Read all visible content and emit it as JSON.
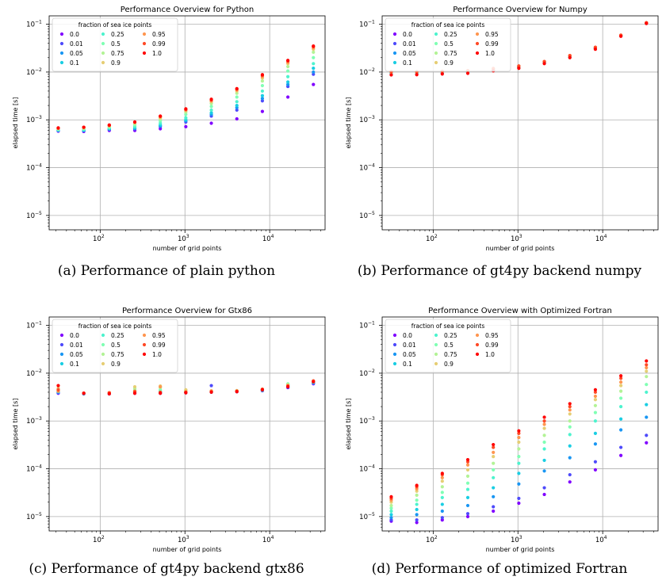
{
  "captions": [
    "(a) Performance of plain python",
    "(b) Performance of gt4py backend numpy",
    "(c) Performance of gt4py backend gtx86",
    "(d) Performance of optimized Fortran"
  ],
  "colors": {
    "0.0": "#8000ff",
    "0.01": "#4e4afb",
    "0.05": "#1996f3",
    "0.1": "#1acee3",
    "0.25": "#4df3ce",
    "0.5": "#80ffb4",
    "0.75": "#b3f396",
    "0.9": "#e6ce74",
    "0.95": "#ff9650",
    "0.99": "#ff4a27",
    "1.0": "#ff0000"
  },
  "chart_data": [
    {
      "type": "scatter",
      "title": "Performance Overview for Python",
      "xlabel": "number of grid points",
      "ylabel": "elapsed time [s]",
      "xscale": "log",
      "yscale": "log",
      "xlim": [
        25,
        45000
      ],
      "ylim": [
        5e-06,
        0.15
      ],
      "grid": true,
      "legend_title": "fraction of sea ice points",
      "legend_position": "top-left",
      "x": [
        32,
        64,
        128,
        256,
        512,
        1024,
        2048,
        4096,
        8192,
        16384,
        32768
      ],
      "series": [
        {
          "name": "0.0",
          "values": [
            0.00058,
            0.00057,
            0.0006,
            0.0006,
            0.00065,
            0.00072,
            0.00085,
            0.00105,
            0.0015,
            0.003,
            0.0055
          ]
        },
        {
          "name": "0.01",
          "values": [
            0.0006,
            0.00059,
            0.00063,
            0.00064,
            0.00072,
            0.0009,
            0.0012,
            0.0016,
            0.0025,
            0.005,
            0.009
          ]
        },
        {
          "name": "0.05",
          "values": [
            0.0006,
            0.0006,
            0.00064,
            0.00066,
            0.00075,
            0.00095,
            0.0013,
            0.0018,
            0.0028,
            0.0055,
            0.01
          ]
        },
        {
          "name": "0.1",
          "values": [
            0.00061,
            0.00061,
            0.00065,
            0.00068,
            0.00078,
            0.001,
            0.0014,
            0.002,
            0.0032,
            0.0062,
            0.012
          ]
        },
        {
          "name": "0.25",
          "values": [
            0.00062,
            0.00063,
            0.00068,
            0.00072,
            0.00085,
            0.0011,
            0.0016,
            0.0024,
            0.004,
            0.008,
            0.015
          ]
        },
        {
          "name": "0.5",
          "values": [
            0.00064,
            0.00065,
            0.0007,
            0.00078,
            0.00095,
            0.0013,
            0.0019,
            0.003,
            0.0052,
            0.0105,
            0.02
          ]
        },
        {
          "name": "0.75",
          "values": [
            0.00065,
            0.00067,
            0.00073,
            0.00083,
            0.00105,
            0.00145,
            0.0022,
            0.0036,
            0.0065,
            0.013,
            0.026
          ]
        },
        {
          "name": "0.9",
          "values": [
            0.00066,
            0.00068,
            0.00075,
            0.00087,
            0.0011,
            0.00155,
            0.0024,
            0.004,
            0.0075,
            0.015,
            0.03
          ]
        },
        {
          "name": "0.95",
          "values": [
            0.00067,
            0.00069,
            0.00076,
            0.00089,
            0.00115,
            0.0016,
            0.0025,
            0.0042,
            0.008,
            0.016,
            0.032
          ]
        },
        {
          "name": "0.99",
          "values": [
            0.00067,
            0.0007,
            0.00077,
            0.0009,
            0.00118,
            0.00165,
            0.0026,
            0.0044,
            0.0085,
            0.017,
            0.034
          ]
        },
        {
          "name": "1.0",
          "values": [
            0.00068,
            0.0007,
            0.00078,
            0.0009,
            0.0012,
            0.0017,
            0.0027,
            0.0045,
            0.0088,
            0.0175,
            0.035
          ]
        }
      ]
    },
    {
      "type": "scatter",
      "title": "Performance Overview for Numpy",
      "xlabel": "number of grid points",
      "ylabel": "elapsed time [s]",
      "xscale": "log",
      "yscale": "log",
      "xlim": [
        25,
        45000
      ],
      "ylim": [
        5e-06,
        0.15
      ],
      "grid": true,
      "legend_title": "fraction of sea ice points",
      "legend_position": "top-left",
      "x": [
        32,
        64,
        128,
        256,
        512,
        1024,
        2048,
        4096,
        8192,
        16384,
        32768
      ],
      "series": [
        {
          "name": "0.0",
          "values": [
            0.0093,
            0.0093,
            0.0095,
            0.0097,
            0.011,
            0.0125,
            0.0155,
            0.0205,
            0.031,
            0.057,
            0.105
          ]
        },
        {
          "name": "0.01",
          "values": [
            0.0094,
            0.0094,
            0.0096,
            0.0098,
            0.0111,
            0.0126,
            0.0156,
            0.0207,
            0.0312,
            0.0572,
            0.105
          ]
        },
        {
          "name": "0.05",
          "values": [
            0.0095,
            0.0095,
            0.0097,
            0.0099,
            0.0112,
            0.0127,
            0.0157,
            0.0209,
            0.0314,
            0.0575,
            0.105
          ]
        },
        {
          "name": "0.1",
          "values": [
            0.0096,
            0.0096,
            0.0098,
            0.01,
            0.0113,
            0.0128,
            0.0158,
            0.021,
            0.0316,
            0.0578,
            0.106
          ]
        },
        {
          "name": "0.25",
          "values": [
            0.0097,
            0.0097,
            0.0099,
            0.0101,
            0.0114,
            0.0129,
            0.016,
            0.0212,
            0.0318,
            0.058,
            0.106
          ]
        },
        {
          "name": "0.5",
          "values": [
            0.0098,
            0.0098,
            0.01,
            0.0102,
            0.0115,
            0.013,
            0.0162,
            0.0214,
            0.032,
            0.0582,
            0.106
          ]
        },
        {
          "name": "0.75",
          "values": [
            0.0099,
            0.0099,
            0.0101,
            0.0104,
            0.0116,
            0.0131,
            0.0163,
            0.0216,
            0.0322,
            0.0585,
            0.107
          ]
        },
        {
          "name": "0.9",
          "values": [
            0.01,
            0.01,
            0.0102,
            0.0105,
            0.0117,
            0.0132,
            0.0164,
            0.0218,
            0.0325,
            0.0588,
            0.107
          ]
        },
        {
          "name": "0.95",
          "values": [
            0.0101,
            0.0101,
            0.0103,
            0.0106,
            0.0118,
            0.0133,
            0.0165,
            0.022,
            0.0328,
            0.059,
            0.107
          ]
        },
        {
          "name": "0.99",
          "values": [
            0.0102,
            0.0102,
            0.0104,
            0.0107,
            0.0119,
            0.0134,
            0.0166,
            0.0222,
            0.033,
            0.0592,
            0.108
          ]
        },
        {
          "name": "1.0",
          "values": [
            0.0087,
            0.0088,
            0.0091,
            0.0094,
            0.0106,
            0.012,
            0.015,
            0.02,
            0.03,
            0.056,
            0.104
          ]
        }
      ]
    },
    {
      "type": "scatter",
      "title": "Performance Overview for Gtx86",
      "xlabel": "number of grid points",
      "ylabel": "elapsed time [s]",
      "xscale": "log",
      "yscale": "log",
      "xlim": [
        25,
        45000
      ],
      "ylim": [
        5e-06,
        0.15
      ],
      "grid": true,
      "legend_title": "fraction of sea ice points",
      "legend_position": "top-left",
      "x": [
        32,
        64,
        128,
        256,
        512,
        1024,
        2048,
        4096,
        8192,
        16384,
        32768
      ],
      "series": [
        {
          "name": "0.0",
          "values": [
            0.0038,
            0.0037,
            0.0037,
            0.0038,
            0.0038,
            0.0039,
            0.004,
            0.0041,
            0.0043,
            0.005,
            0.006
          ]
        },
        {
          "name": "0.01",
          "values": [
            0.0039,
            0.0037,
            0.0037,
            0.0039,
            0.0039,
            0.004,
            0.0055,
            0.0041,
            0.0043,
            0.0051,
            0.0062
          ]
        },
        {
          "name": "0.05",
          "values": [
            0.004,
            0.0037,
            0.0038,
            0.004,
            0.004,
            0.004,
            0.004,
            0.0042,
            0.0044,
            0.0052,
            0.0063
          ]
        },
        {
          "name": "0.1",
          "values": [
            0.0041,
            0.0038,
            0.0038,
            0.0041,
            0.0041,
            0.0041,
            0.0041,
            0.0042,
            0.0044,
            0.0055,
            0.0064
          ]
        },
        {
          "name": "0.25",
          "values": [
            0.0042,
            0.0038,
            0.0038,
            0.0042,
            0.0042,
            0.0041,
            0.0041,
            0.0042,
            0.0045,
            0.0058,
            0.0065
          ]
        },
        {
          "name": "0.5",
          "values": [
            0.0043,
            0.0038,
            0.0039,
            0.0044,
            0.0045,
            0.0042,
            0.0042,
            0.0043,
            0.0045,
            0.006,
            0.0066
          ]
        },
        {
          "name": "0.75",
          "values": [
            0.0045,
            0.0038,
            0.0039,
            0.0048,
            0.005,
            0.0043,
            0.0042,
            0.0043,
            0.0046,
            0.0058,
            0.0067
          ]
        },
        {
          "name": "0.9",
          "values": [
            0.0048,
            0.0038,
            0.0039,
            0.0052,
            0.0054,
            0.0045,
            0.0043,
            0.0043,
            0.0046,
            0.0056,
            0.0068
          ]
        },
        {
          "name": "0.95",
          "values": [
            0.0042,
            0.0038,
            0.0039,
            0.0042,
            0.0052,
            0.0041,
            0.0042,
            0.0042,
            0.0046,
            0.0055,
            0.0068
          ]
        },
        {
          "name": "0.99",
          "values": [
            0.0045,
            0.0038,
            0.0039,
            0.0041,
            0.004,
            0.004,
            0.0041,
            0.0042,
            0.0046,
            0.0054,
            0.0069
          ]
        },
        {
          "name": "1.0",
          "values": [
            0.0055,
            0.0038,
            0.0037,
            0.0038,
            0.0038,
            0.0039,
            0.004,
            0.0041,
            0.0045,
            0.0052,
            0.0066
          ]
        }
      ]
    },
    {
      "type": "scatter",
      "title": "Performance Overview with Optimized Fortran",
      "xlabel": "number of grid points",
      "ylabel": "elapsed time [s]",
      "xscale": "log",
      "yscale": "log",
      "xlim": [
        25,
        45000
      ],
      "ylim": [
        5e-06,
        0.15
      ],
      "grid": true,
      "legend_title": "fraction of sea ice points",
      "legend_position": "top-left",
      "x": [
        32,
        64,
        128,
        256,
        512,
        1024,
        2048,
        4096,
        8192,
        16384,
        32768
      ],
      "series": [
        {
          "name": "0.0",
          "values": [
            8e-06,
            7.5e-06,
            8.5e-06,
            1e-05,
            1.3e-05,
            1.9e-05,
            2.9e-05,
            5.3e-05,
            9.5e-05,
            0.00019,
            0.00035
          ]
        },
        {
          "name": "0.01",
          "values": [
            8.5e-06,
            8.5e-06,
            9.5e-06,
            1.15e-05,
            1.6e-05,
            2.4e-05,
            4e-05,
            7.5e-05,
            0.00014,
            0.00028,
            0.0005
          ]
        },
        {
          "name": "0.05",
          "values": [
            9.5e-06,
            1.1e-05,
            1.3e-05,
            1.7e-05,
            2.6e-05,
            4.8e-05,
            9e-05,
            0.00017,
            0.00033,
            0.00065,
            0.0012
          ]
        },
        {
          "name": "0.1",
          "values": [
            1.1e-05,
            1.4e-05,
            1.8e-05,
            2.5e-05,
            4e-05,
            8e-05,
            0.00015,
            0.0003,
            0.00055,
            0.0011,
            0.0022
          ]
        },
        {
          "name": "0.25",
          "values": [
            1.3e-05,
            1.8e-05,
            2.5e-05,
            3.7e-05,
            6.5e-05,
            0.00013,
            0.00026,
            0.00052,
            0.001,
            0.002,
            0.004
          ]
        },
        {
          "name": "0.5",
          "values": [
            1.5e-05,
            2.2e-05,
            3.2e-05,
            5e-05,
            9.5e-05,
            0.00018,
            0.00036,
            0.00075,
            0.0015,
            0.003,
            0.0058
          ]
        },
        {
          "name": "0.75",
          "values": [
            1.7e-05,
            2.8e-05,
            4.2e-05,
            7e-05,
            0.00013,
            0.00026,
            0.0005,
            0.001,
            0.0021,
            0.0042,
            0.0085
          ]
        },
        {
          "name": "0.9",
          "values": [
            2e-05,
            3.4e-05,
            5.5e-05,
            9.5e-05,
            0.00018,
            0.00036,
            0.0007,
            0.0014,
            0.0028,
            0.0055,
            0.011
          ]
        },
        {
          "name": "0.95",
          "values": [
            2.2e-05,
            3.8e-05,
            6.5e-05,
            0.00012,
            0.00022,
            0.00045,
            0.00085,
            0.0017,
            0.0033,
            0.0065,
            0.013
          ]
        },
        {
          "name": "0.99",
          "values": [
            2.4e-05,
            4.2e-05,
            7.5e-05,
            0.00014,
            0.00028,
            0.00055,
            0.001,
            0.002,
            0.004,
            0.0078,
            0.015
          ]
        },
        {
          "name": "1.0",
          "values": [
            2.6e-05,
            4.5e-05,
            8e-05,
            0.000155,
            0.00032,
            0.00062,
            0.0012,
            0.0023,
            0.0045,
            0.0088,
            0.018
          ]
        }
      ]
    }
  ]
}
